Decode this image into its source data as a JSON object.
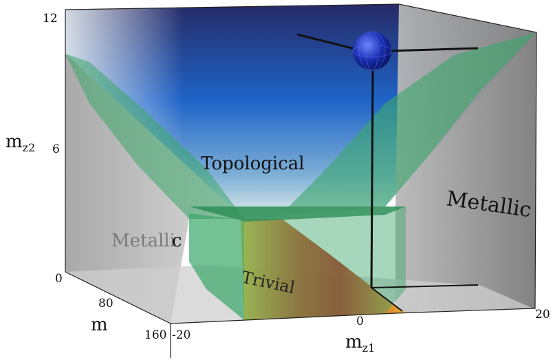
{
  "axes": {
    "mz2_label": "m",
    "mz2_sub": "z2",
    "m_label": "m",
    "mz1_label": "m",
    "mz1_sub": "z1",
    "mz2_ticks": [
      "12",
      "6",
      "0"
    ],
    "m_ticks": [
      "80",
      "160"
    ],
    "mz1_ticks": [
      "-20",
      "0",
      "20"
    ]
  },
  "regions": {
    "topological": "Topological",
    "metallic_left_a": "Metalli",
    "metallic_left_b": "c",
    "metallic_right": "Metallic",
    "trivial": "Trivial"
  },
  "colors": {
    "top_dark": "#262a66",
    "top_blue": "#1f64c8",
    "green_sheet": "#3aa66a",
    "gray_wall": "#8e8e8e",
    "trivial_red": "#c81c10",
    "trivial_yellow": "#e8c23a",
    "marker_sphere": "#1a2fb0"
  }
}
